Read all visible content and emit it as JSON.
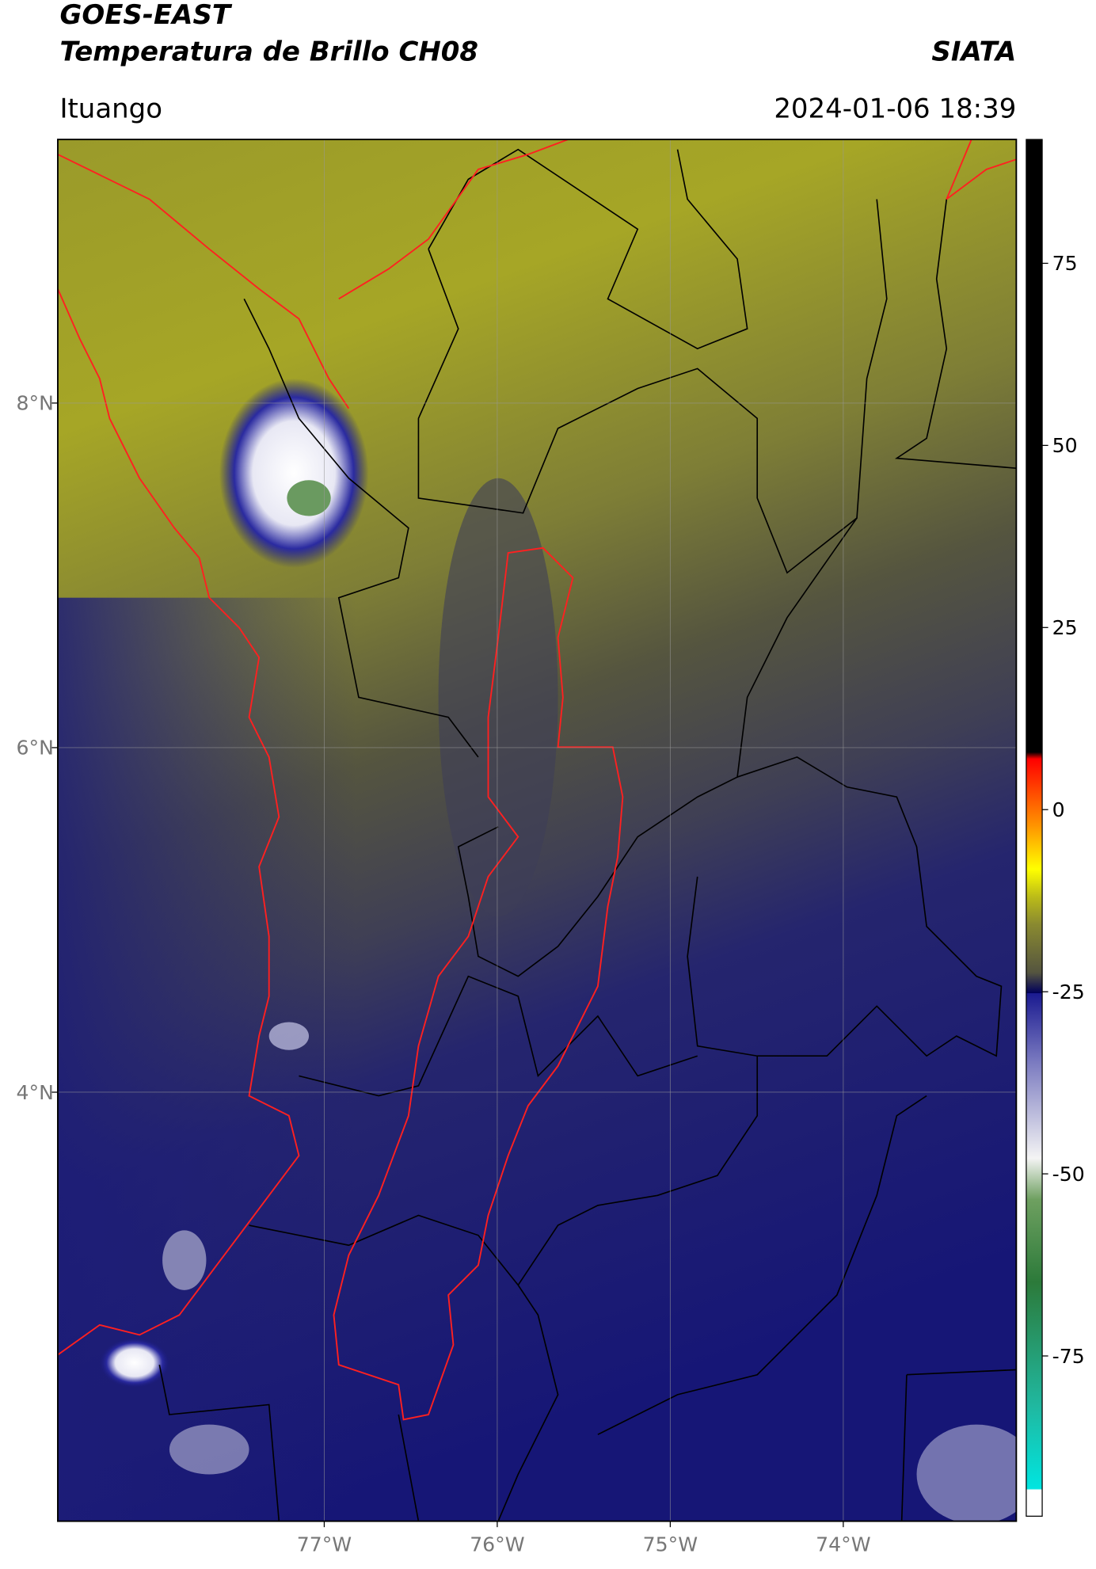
{
  "header": {
    "title_line1": "GOES-EAST",
    "title_line2": "Temperatura de Brillo CH08",
    "organization": "SIATA",
    "location": "Ituango",
    "timestamp": "2024-01-06 18:39"
  },
  "map": {
    "lon_range": [
      -78.54,
      -73.0
    ],
    "lat_range": [
      1.51,
      9.53
    ],
    "lat_ticks": [
      {
        "value": 8,
        "label": "8°N"
      },
      {
        "value": 6,
        "label": "6°N"
      },
      {
        "value": 4,
        "label": "4°N"
      }
    ],
    "lon_ticks": [
      {
        "value": -77,
        "label": "77°W"
      },
      {
        "value": -76,
        "label": "76°W"
      },
      {
        "value": -75,
        "label": "75°W"
      },
      {
        "value": -74,
        "label": "74°W"
      }
    ]
  },
  "colorbar": {
    "range": [
      -97,
      92
    ],
    "ticks": [
      75,
      50,
      25,
      0,
      -25,
      -50,
      -75
    ]
  }
}
